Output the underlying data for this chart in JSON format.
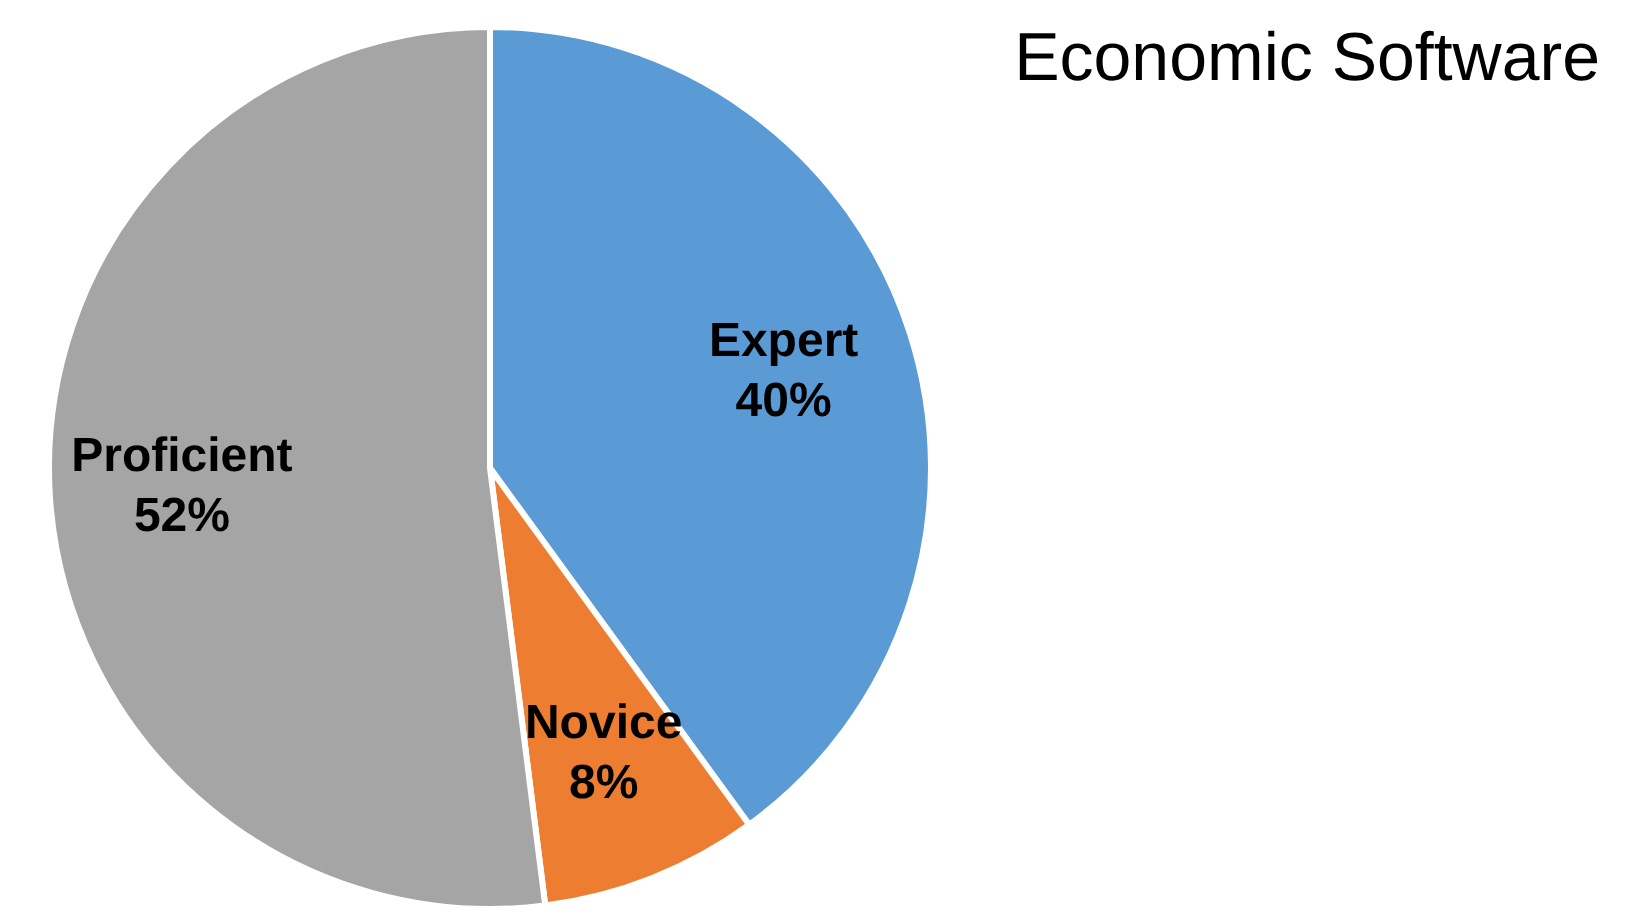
{
  "chart_data": {
    "type": "pie",
    "title": "Economic Software",
    "categories": [
      "Expert",
      "Novice",
      "Proficient"
    ],
    "values": [
      40,
      8,
      52
    ],
    "value_labels": [
      "40%",
      "8%",
      "52%"
    ],
    "colors": [
      "#5b9bd5",
      "#ed7d31",
      "#a5a5a5"
    ],
    "legend": false
  }
}
